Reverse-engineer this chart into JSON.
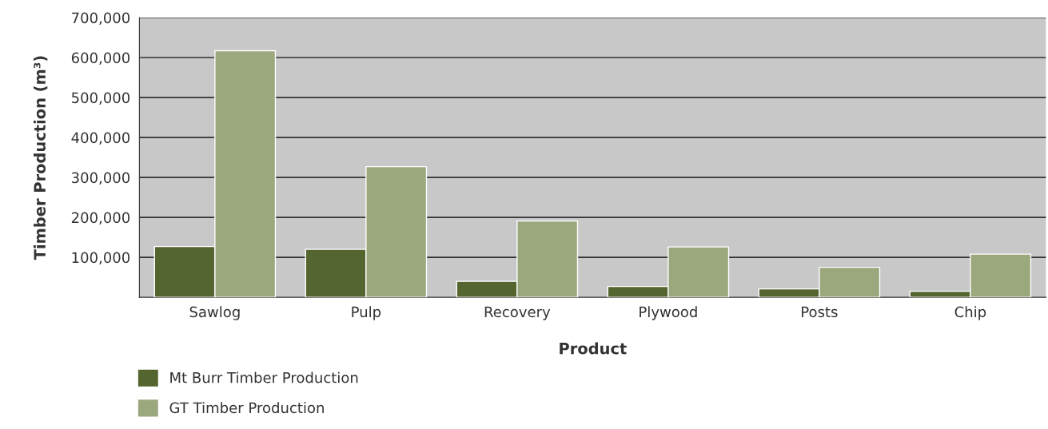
{
  "chart_data": {
    "type": "bar",
    "xlabel": "Product",
    "ylabel": "Timber Production (m³)",
    "categories": [
      "Sawlog",
      "Pulp",
      "Recovery",
      "Plywood",
      "Posts",
      "Chip"
    ],
    "series": [
      {
        "name": "Mt Burr Timber Production",
        "color": "#556530",
        "values": [
          127000,
          120000,
          40000,
          27000,
          21000,
          15000
        ]
      },
      {
        "name": "GT Timber Production",
        "color": "#9ba77d",
        "values": [
          617000,
          327000,
          191000,
          126000,
          75000,
          108000
        ]
      }
    ],
    "ylim": [
      0,
      700000
    ],
    "yticks": [
      {
        "value": 100000,
        "label": "100,000"
      },
      {
        "value": 200000,
        "label": "200,000"
      },
      {
        "value": 300000,
        "label": "300,000"
      },
      {
        "value": 400000,
        "label": "400,000"
      },
      {
        "value": 500000,
        "label": "500,000"
      },
      {
        "value": 600000,
        "label": "600,000"
      },
      {
        "value": 700000,
        "label": "700,000"
      }
    ],
    "grid": "y",
    "legend": "bottom left"
  }
}
